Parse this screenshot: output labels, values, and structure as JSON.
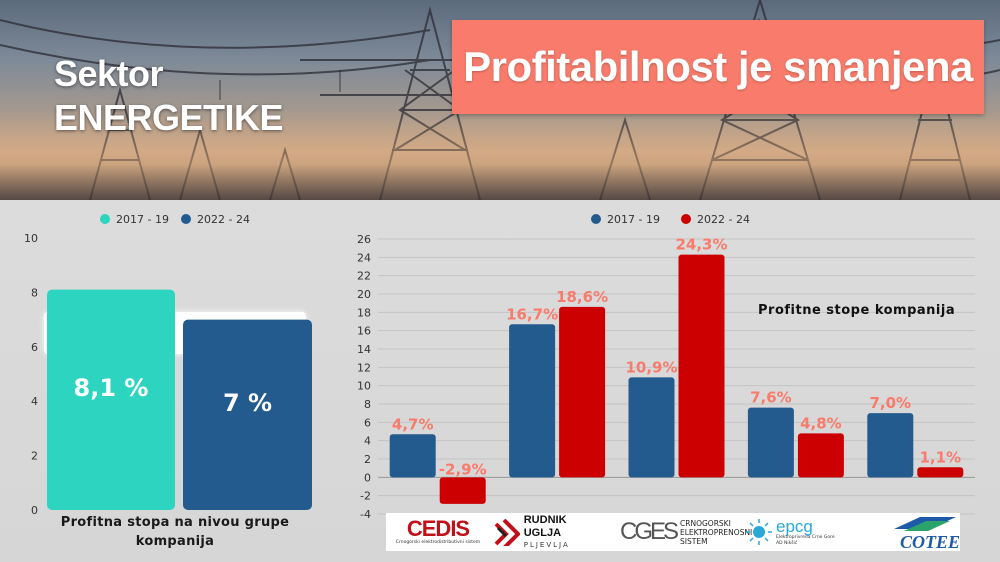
{
  "header": {
    "title_line1": "Sektor",
    "title_line2": "ENERGETIKE",
    "banner": "Profitabilnost je smanjena",
    "banner_color": "#f87b6b"
  },
  "left_caption": "Profitna stopa na nivou grupe kompanija",
  "right_caption": "Profitne stope kompanija",
  "logos": {
    "cedis": "CEDIS",
    "cedis_sub": "Crnogorski elektrodistributivni sistem",
    "rudnik_main": "RUDNIK UGLJA",
    "rudnik_sub": "PLJEVLJA",
    "cges_mark": "CGES",
    "cges_l1": "CRNOGORSKI",
    "cges_l2": "ELEKTROPRENOSNI",
    "cges_l3": "SISTEM",
    "epcg": "epcg",
    "epcg_sub1": "Elektroprivreda Crne Gore",
    "epcg_sub2": "AD Nikšić",
    "cotee": "COTEE"
  },
  "chart_data": [
    {
      "type": "bar",
      "categories": [
        ""
      ],
      "series": [
        {
          "name": "2017 - 19",
          "values": [
            8.1
          ],
          "labels": [
            "8,1 %"
          ],
          "color": "#2dd4bf"
        },
        {
          "name": "2022 - 24",
          "values": [
            7
          ],
          "labels": [
            "7 %"
          ],
          "color": "#235b8e"
        }
      ],
      "ylim": [
        0,
        10
      ],
      "yticks": [
        0,
        2,
        4,
        6,
        8,
        10
      ],
      "legend": "top-center",
      "grid": false
    },
    {
      "type": "bar",
      "categories": [
        "CEDIS",
        "Rudnik uglja Pljevlja",
        "CGES",
        "EPCG",
        "COTEE"
      ],
      "series": [
        {
          "name": "2017 - 19",
          "values": [
            4.7,
            16.7,
            10.9,
            7.6,
            7.0
          ],
          "labels": [
            "4,7%",
            "16,7%",
            "10,9%",
            "7,6%",
            "7,0%"
          ],
          "color": "#235b8e"
        },
        {
          "name": "2022 - 24",
          "values": [
            -2.9,
            18.6,
            24.3,
            4.8,
            1.1
          ],
          "labels": [
            "-2,9%",
            "18,6%",
            "24,3%",
            "4,8%",
            "1,1%"
          ],
          "color": "#cc0000"
        }
      ],
      "ylim": [
        -4,
        26
      ],
      "yticks": [
        -4,
        -2,
        0,
        2,
        4,
        6,
        8,
        10,
        12,
        14,
        16,
        18,
        20,
        22,
        24,
        26
      ],
      "legend": "top-center",
      "grid": true,
      "label_color": "#f87b6b"
    }
  ]
}
